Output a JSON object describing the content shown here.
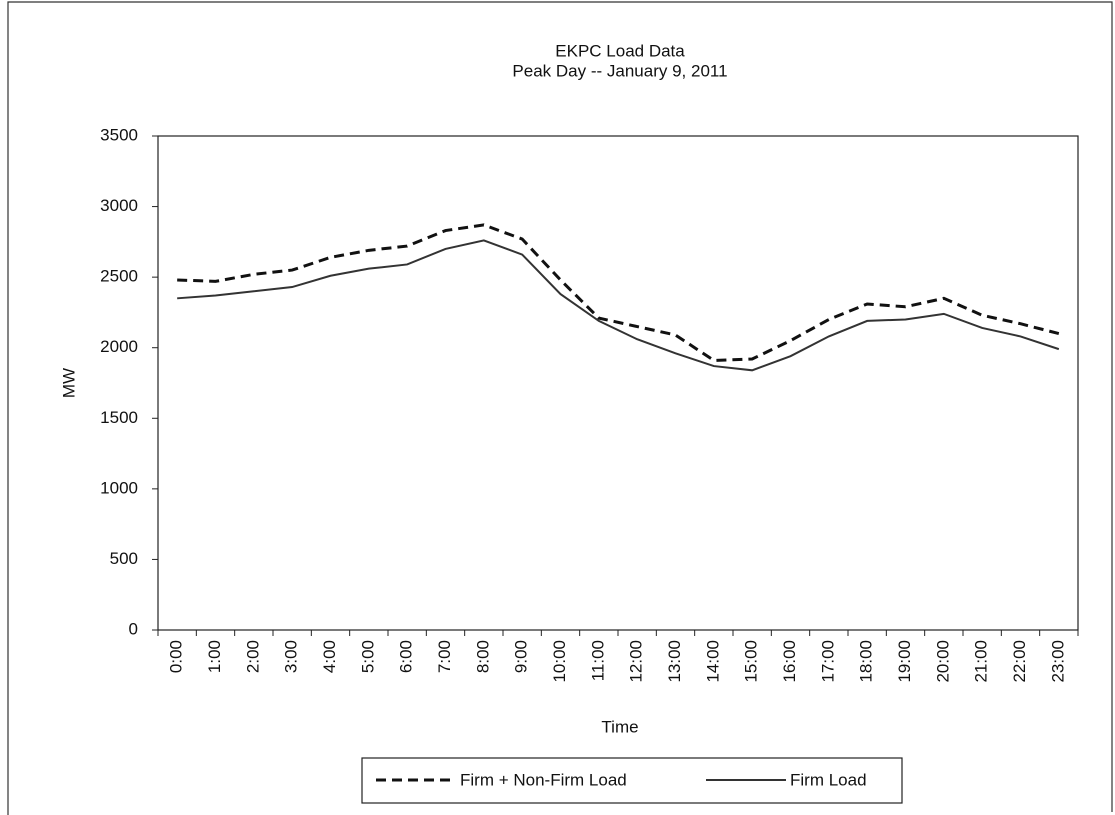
{
  "chart_data": {
    "type": "line",
    "title": "EKPC Load Data",
    "subtitle": "Peak Day -- January 9, 2011",
    "x_label": "Time",
    "y_label": "MW",
    "categories": [
      "0:00",
      "1:00",
      "2:00",
      "3:00",
      "4:00",
      "5:00",
      "6:00",
      "7:00",
      "8:00",
      "9:00",
      "10:00",
      "11:00",
      "12:00",
      "13:00",
      "14:00",
      "15:00",
      "16:00",
      "17:00",
      "18:00",
      "19:00",
      "20:00",
      "21:00",
      "22:00",
      "23:00"
    ],
    "series": [
      {
        "name": "Firm + Non-Firm Load",
        "color": "#111111",
        "dashed": true,
        "values": [
          2480,
          2470,
          2520,
          2550,
          2640,
          2690,
          2720,
          2830,
          2870,
          2770,
          2480,
          2210,
          2150,
          2090,
          1910,
          1920,
          2050,
          2200,
          2310,
          2290,
          2350,
          2230,
          2170,
          2100
        ]
      },
      {
        "name": "Firm Load",
        "color": "#333333",
        "dashed": false,
        "values": [
          2350,
          2370,
          2400,
          2430,
          2510,
          2560,
          2590,
          2700,
          2760,
          2660,
          2380,
          2190,
          2060,
          1960,
          1870,
          1840,
          1940,
          2080,
          2190,
          2200,
          2240,
          2140,
          2080,
          1990
        ]
      }
    ],
    "ylim": [
      0,
      3500
    ],
    "yticks": [
      0,
      500,
      1000,
      1500,
      2000,
      2500,
      3000,
      3500
    ],
    "grid": false
  }
}
